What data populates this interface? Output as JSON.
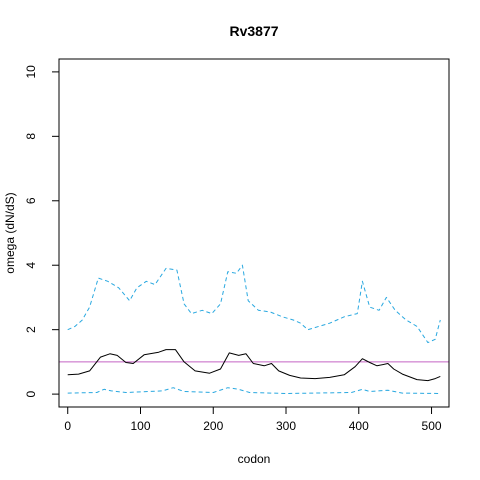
{
  "chart_data": {
    "type": "line",
    "title": "Rv3877",
    "xlabel": "codon",
    "ylabel": "omega (dN/dS)",
    "xlim": [
      -12,
      524
    ],
    "ylim": [
      -0.4,
      10.4
    ],
    "xticks": [
      0,
      100,
      200,
      300,
      400,
      500
    ],
    "yticks": [
      0,
      2,
      4,
      6,
      8,
      10
    ],
    "grid": false,
    "legend": "none",
    "reference_line": {
      "y": 1,
      "color": "#c463c4"
    },
    "series": [
      {
        "role": "mean",
        "color": "#000000",
        "dash": "solid",
        "points": [
          [
            0,
            0.6
          ],
          [
            15,
            0.62
          ],
          [
            30,
            0.72
          ],
          [
            45,
            1.15
          ],
          [
            58,
            1.25
          ],
          [
            68,
            1.2
          ],
          [
            80,
            0.98
          ],
          [
            90,
            0.95
          ],
          [
            105,
            1.22
          ],
          [
            125,
            1.3
          ],
          [
            135,
            1.38
          ],
          [
            148,
            1.38
          ],
          [
            160,
            1.0
          ],
          [
            175,
            0.72
          ],
          [
            195,
            0.65
          ],
          [
            210,
            0.78
          ],
          [
            222,
            1.28
          ],
          [
            235,
            1.2
          ],
          [
            245,
            1.25
          ],
          [
            255,
            0.95
          ],
          [
            270,
            0.88
          ],
          [
            280,
            0.95
          ],
          [
            290,
            0.72
          ],
          [
            305,
            0.58
          ],
          [
            320,
            0.5
          ],
          [
            340,
            0.48
          ],
          [
            360,
            0.52
          ],
          [
            380,
            0.6
          ],
          [
            395,
            0.85
          ],
          [
            405,
            1.1
          ],
          [
            415,
            0.98
          ],
          [
            425,
            0.88
          ],
          [
            440,
            0.95
          ],
          [
            448,
            0.78
          ],
          [
            460,
            0.62
          ],
          [
            480,
            0.45
          ],
          [
            495,
            0.42
          ],
          [
            505,
            0.48
          ],
          [
            512,
            0.55
          ]
        ]
      },
      {
        "role": "upper",
        "color": "#29a8e0",
        "dash": "dashed",
        "points": [
          [
            0,
            2.0
          ],
          [
            10,
            2.1
          ],
          [
            20,
            2.3
          ],
          [
            30,
            2.7
          ],
          [
            42,
            3.6
          ],
          [
            55,
            3.5
          ],
          [
            70,
            3.3
          ],
          [
            85,
            2.9
          ],
          [
            95,
            3.3
          ],
          [
            108,
            3.5
          ],
          [
            120,
            3.4
          ],
          [
            135,
            3.9
          ],
          [
            150,
            3.85
          ],
          [
            160,
            2.8
          ],
          [
            170,
            2.5
          ],
          [
            185,
            2.6
          ],
          [
            198,
            2.5
          ],
          [
            210,
            2.8
          ],
          [
            220,
            3.8
          ],
          [
            232,
            3.75
          ],
          [
            240,
            4.0
          ],
          [
            248,
            2.9
          ],
          [
            262,
            2.6
          ],
          [
            278,
            2.55
          ],
          [
            295,
            2.4
          ],
          [
            310,
            2.3
          ],
          [
            320,
            2.2
          ],
          [
            330,
            2.0
          ],
          [
            345,
            2.1
          ],
          [
            360,
            2.2
          ],
          [
            380,
            2.4
          ],
          [
            398,
            2.5
          ],
          [
            405,
            3.5
          ],
          [
            415,
            2.7
          ],
          [
            428,
            2.6
          ],
          [
            438,
            3.0
          ],
          [
            450,
            2.6
          ],
          [
            465,
            2.3
          ],
          [
            480,
            2.1
          ],
          [
            495,
            1.6
          ],
          [
            505,
            1.7
          ],
          [
            512,
            2.3
          ]
        ]
      },
      {
        "role": "lower",
        "color": "#29a8e0",
        "dash": "dashed",
        "points": [
          [
            0,
            0.03
          ],
          [
            40,
            0.05
          ],
          [
            50,
            0.15
          ],
          [
            60,
            0.1
          ],
          [
            80,
            0.05
          ],
          [
            130,
            0.1
          ],
          [
            145,
            0.2
          ],
          [
            160,
            0.08
          ],
          [
            200,
            0.05
          ],
          [
            220,
            0.2
          ],
          [
            235,
            0.15
          ],
          [
            250,
            0.05
          ],
          [
            300,
            0.02
          ],
          [
            390,
            0.05
          ],
          [
            405,
            0.15
          ],
          [
            415,
            0.08
          ],
          [
            440,
            0.12
          ],
          [
            460,
            0.03
          ],
          [
            512,
            0.02
          ]
        ]
      }
    ]
  }
}
